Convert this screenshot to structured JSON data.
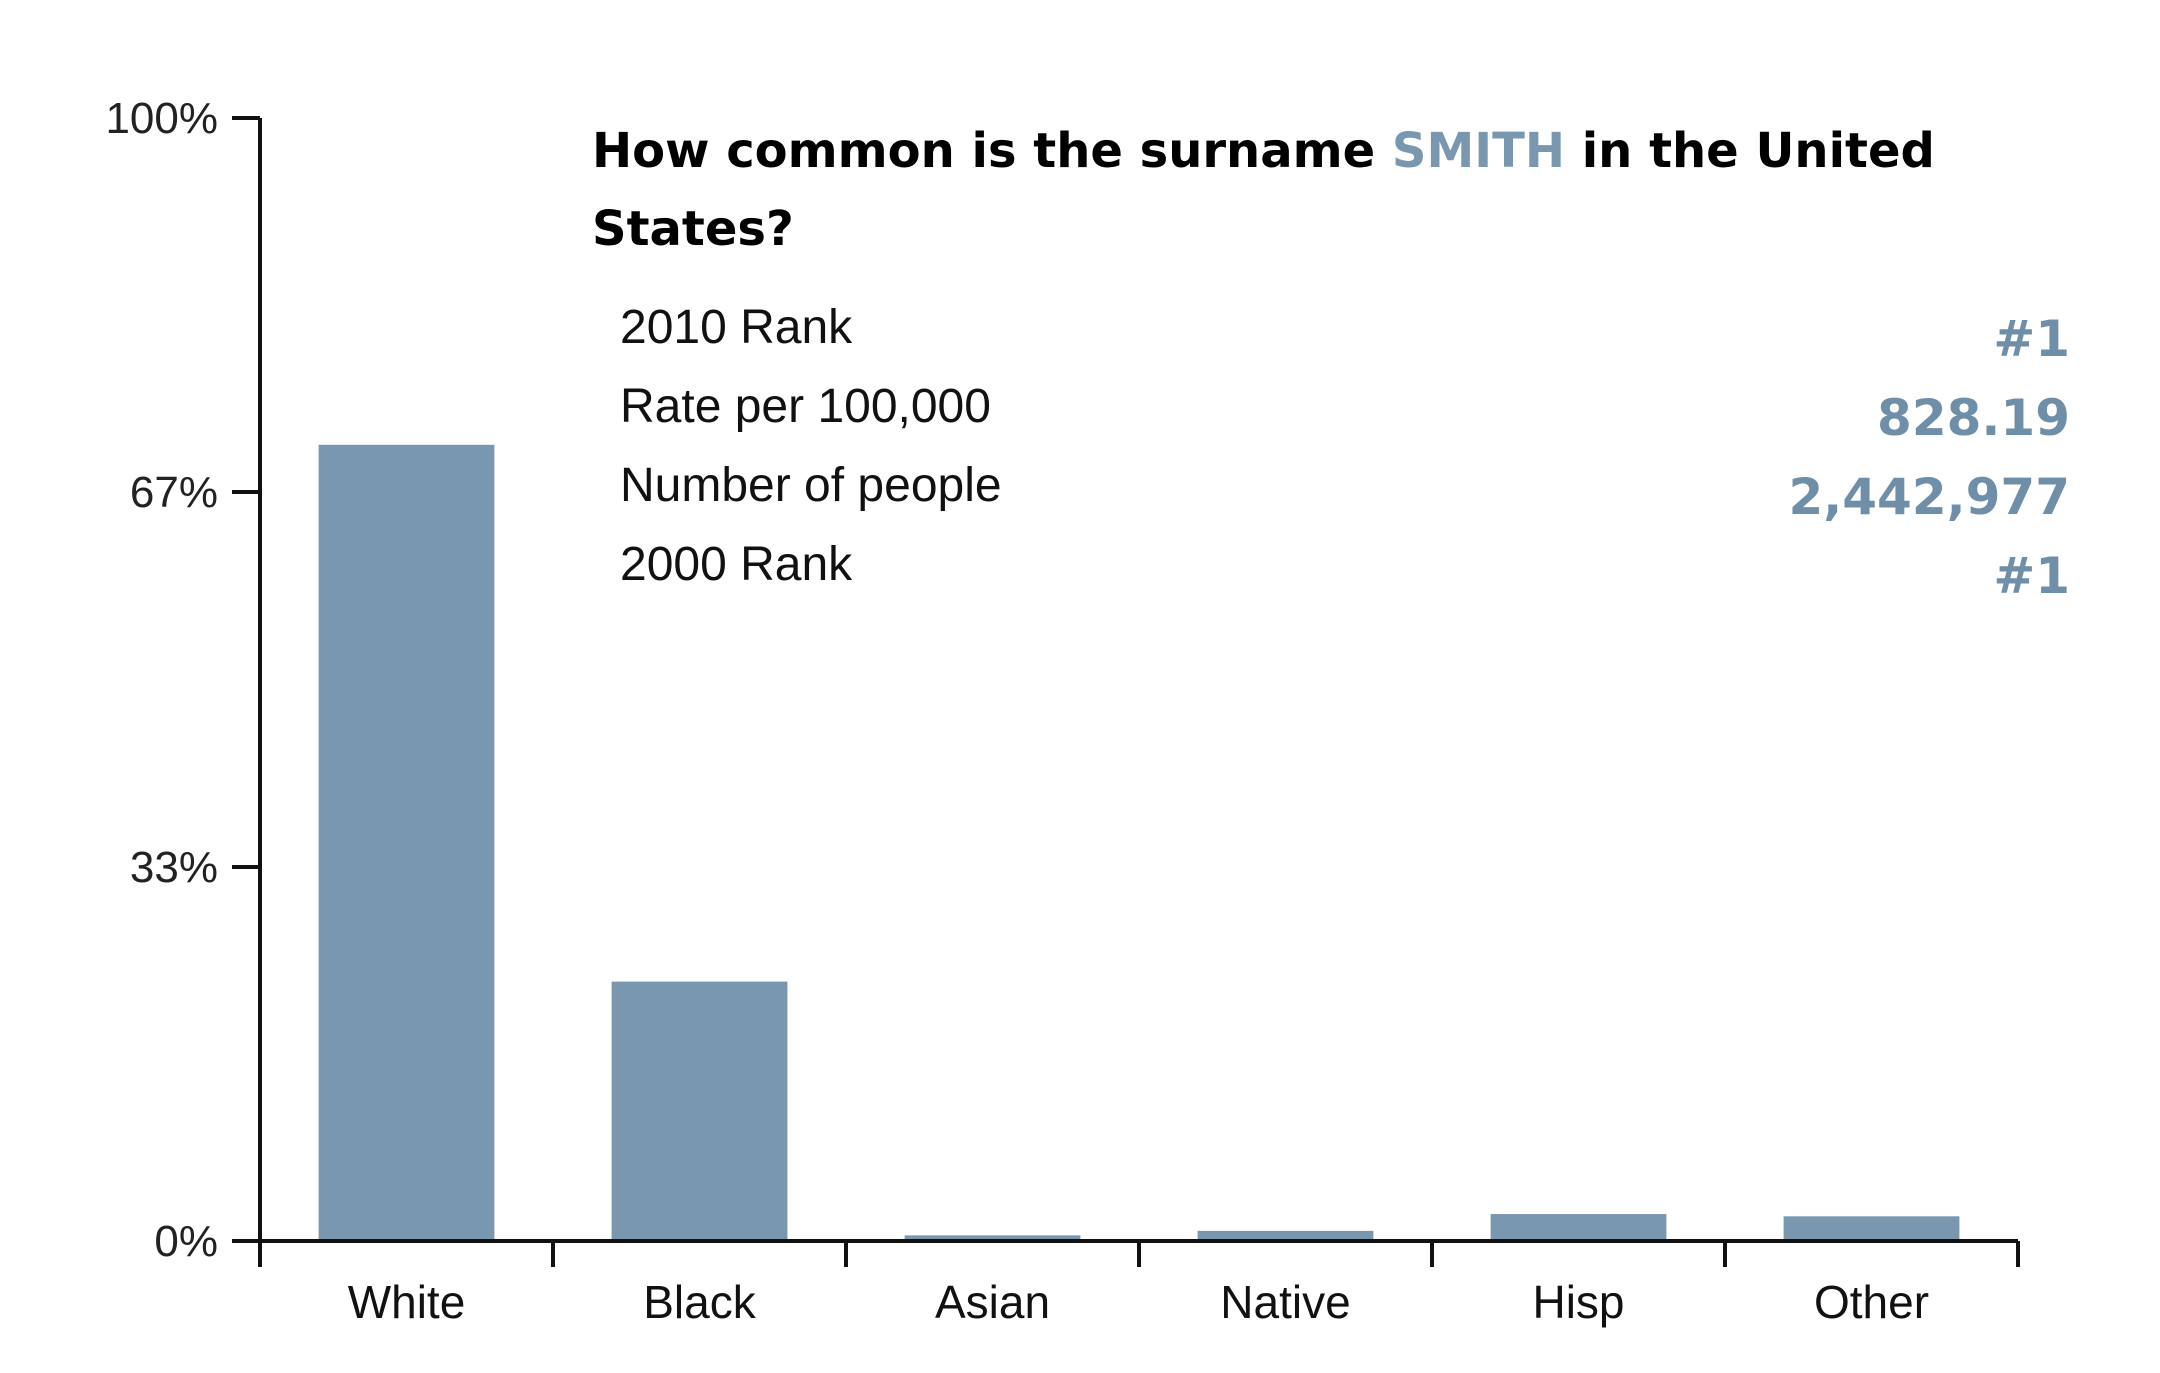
{
  "title": {
    "prefix": "How common is the surname ",
    "surname": "SMITH",
    "suffix": " in the United States?"
  },
  "stats": [
    {
      "label": "2010 Rank",
      "value": "#1"
    },
    {
      "label": "Rate per 100,000",
      "value": "828.19"
    },
    {
      "label": "Number of people",
      "value": "2,442,977"
    },
    {
      "label": "2000 Rank",
      "value": "#1"
    }
  ],
  "colors": {
    "bar": "#7a97b0",
    "accent": "#7a97b0"
  },
  "chart_data": {
    "type": "bar",
    "categories": [
      "White",
      "Black",
      "Asian",
      "Native",
      "Hisp",
      "Other"
    ],
    "values": [
      70.9,
      23.1,
      0.5,
      0.9,
      2.4,
      2.2
    ],
    "yticks": [
      {
        "value": 0,
        "label": "0%"
      },
      {
        "value": 33.3,
        "label": "33%"
      },
      {
        "value": 66.7,
        "label": "67%"
      },
      {
        "value": 100,
        "label": "100%"
      }
    ],
    "ylim": [
      0,
      100
    ],
    "grid": false,
    "legend": "none"
  }
}
